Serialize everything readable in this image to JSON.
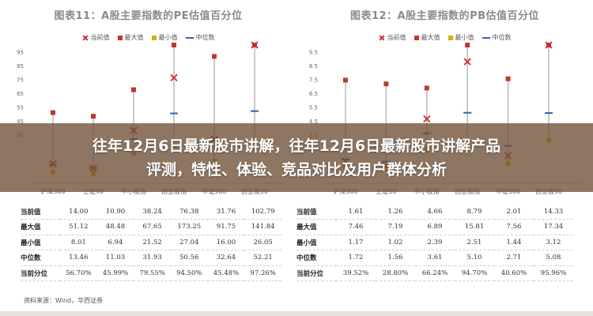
{
  "banner": {
    "line1": "往年12月6日最新股市讲解，往年12月6日最新股市讲解产品",
    "line2": "评测，特性、体验、竞品对比及用户群体分析"
  },
  "legend": {
    "current": "当前值",
    "max": "最大值",
    "min": "最小值",
    "median": "中位数"
  },
  "colors": {
    "max": "#c0392b",
    "current": "#d0282b",
    "min": "#d4b106",
    "median": "#2f63b8",
    "range": "#b9b9b9"
  },
  "row_labels": [
    "当前值",
    "最大值",
    "最小值",
    "中位数",
    "当前分位"
  ],
  "source": "资料来源：Wind，华西证券",
  "chart_data": [
    {
      "type": "scatter",
      "title": "图表11：A股主要指数的PE估值百分位",
      "categories": [
        "沪深300",
        "上证50",
        "中小板指",
        "创业板指",
        "中证500",
        "创业板50"
      ],
      "ylim": [
        0,
        100
      ],
      "yticks": [
        95,
        85,
        75,
        65,
        55,
        45,
        35
      ],
      "series": {
        "current": [
          14.0,
          10.9,
          38.24,
          76.38,
          31.76,
          102.79
        ],
        "max": [
          51.12,
          48.48,
          67.65,
          173.25,
          91.75,
          141.84
        ],
        "min": [
          8.01,
          6.94,
          21.52,
          27.04,
          16.0,
          26.05
        ],
        "median": [
          13.46,
          11.03,
          31.93,
          50.56,
          32.64,
          52.21
        ],
        "percentile": [
          "56.70%",
          "45.99%",
          "79.55%",
          "94.50%",
          "45.48%",
          "97.26%"
        ]
      }
    },
    {
      "type": "scatter",
      "title": "图表12：A股主要指数的PB估值百分位",
      "categories": [
        "沪深300",
        "上证50",
        "中小板指",
        "创业板指",
        "中证500",
        "创业板50"
      ],
      "ylim": [
        0,
        10
      ],
      "yticks": [
        9.5,
        8.5,
        7.5,
        6.5,
        5.5,
        4.5,
        3.5
      ],
      "series": {
        "current": [
          1.61,
          1.26,
          4.66,
          8.79,
          2.01,
          14.33
        ],
        "max": [
          7.46,
          7.19,
          6.89,
          15.81,
          7.56,
          17.34
        ],
        "min": [
          1.17,
          1.02,
          2.39,
          2.51,
          1.44,
          3.12
        ],
        "median": [
          1.72,
          1.56,
          3.61,
          5.1,
          2.71,
          5.08
        ],
        "percentile": [
          "39.52%",
          "28.80%",
          "66.24%",
          "94.70%",
          "40.60%",
          "95.96%"
        ]
      }
    }
  ]
}
